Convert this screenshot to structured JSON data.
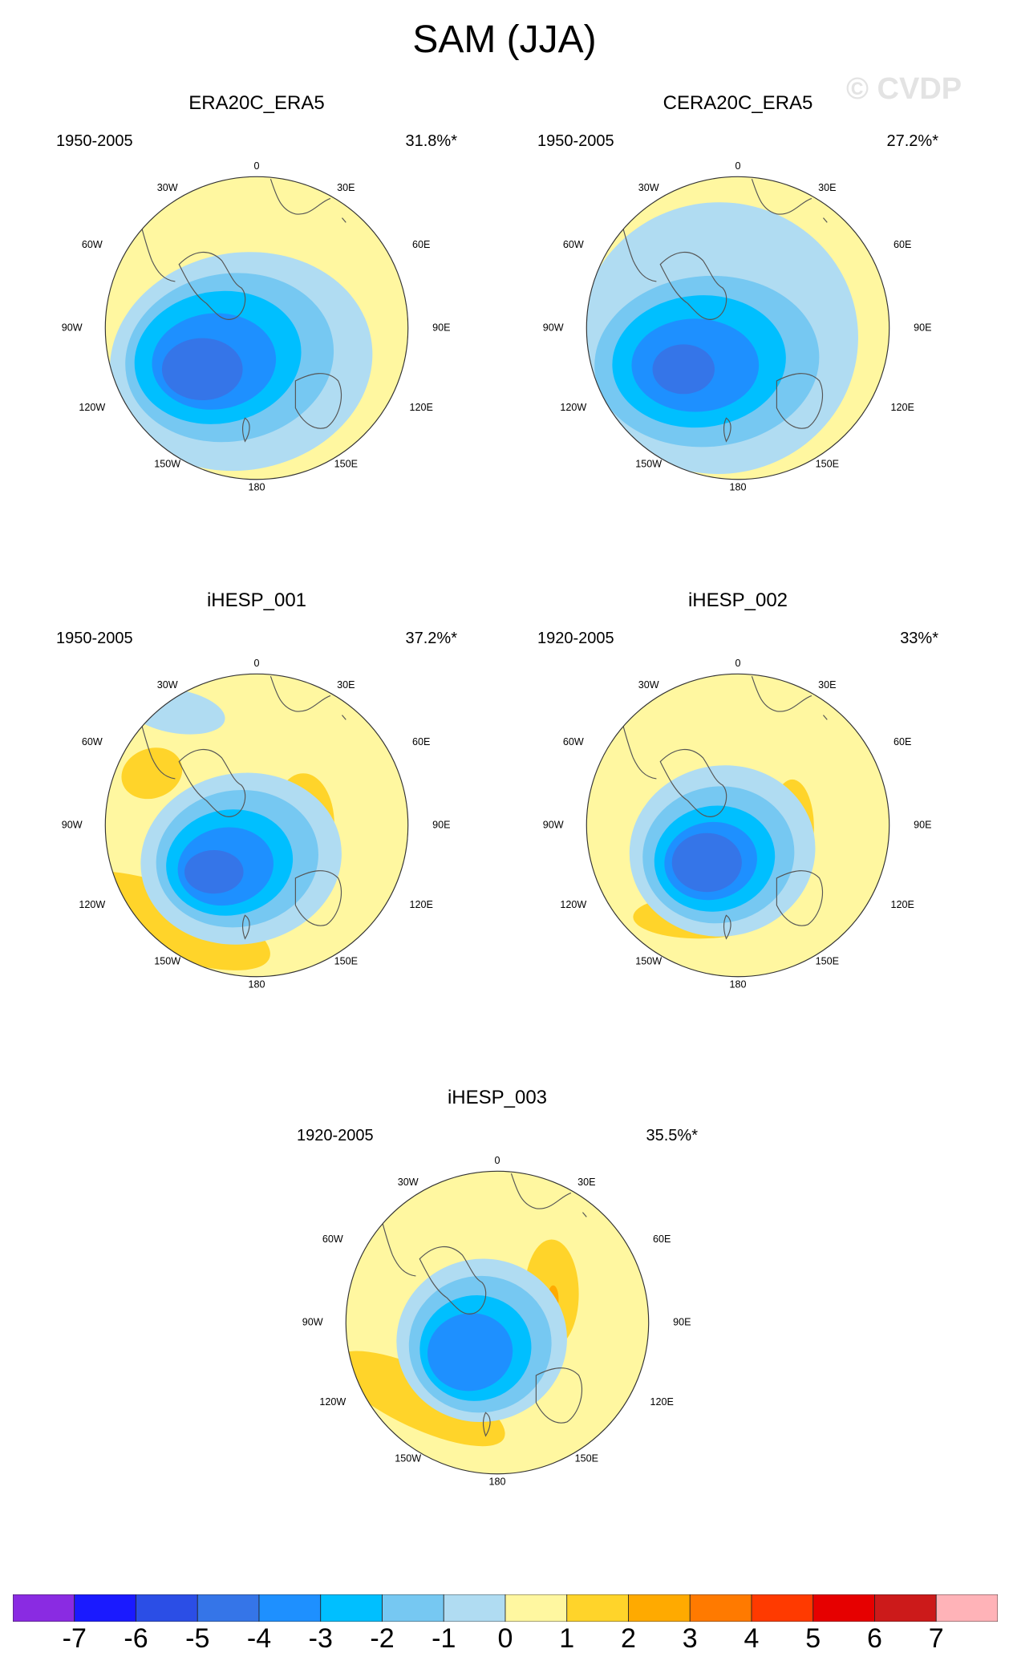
{
  "title": "SAM (JJA)",
  "watermark": "© CVDP",
  "lon_labels": {
    "top": "0",
    "n30w": "30W",
    "n30e": "30E",
    "w60": "60W",
    "e60": "60E",
    "w90": "90W",
    "e90": "90E",
    "w120": "120W",
    "e120": "120E",
    "s150w": "150W",
    "s150e": "150E",
    "bottom": "180"
  },
  "panels": [
    {
      "name": "ERA20C_ERA5",
      "period": "1950-2005",
      "pct": "31.8%*"
    },
    {
      "name": "CERA20C_ERA5",
      "period": "1950-2005",
      "pct": "27.2%*"
    },
    {
      "name": "iHESP_001",
      "period": "1950-2005",
      "pct": "37.2%*"
    },
    {
      "name": "iHESP_002",
      "period": "1920-2005",
      "pct": "33%*"
    },
    {
      "name": "iHESP_003",
      "period": "1920-2005",
      "pct": "35.5%*"
    }
  ],
  "colorbar": {
    "labels": [
      "-7",
      "-6",
      "-5",
      "-4",
      "-3",
      "-2",
      "-1",
      "0",
      "1",
      "2",
      "3",
      "4",
      "5",
      "6",
      "7"
    ],
    "colors": [
      "#8a2be2",
      "#1a1aff",
      "#2b4ee6",
      "#3575e8",
      "#1e90ff",
      "#00bfff",
      "#76c8f2",
      "#b0dcf2",
      "#fff7a0",
      "#ffd42a",
      "#ffaa00",
      "#ff7a00",
      "#ff3a00",
      "#e60000",
      "#cc1a1a",
      "#ffb3b8"
    ]
  }
}
